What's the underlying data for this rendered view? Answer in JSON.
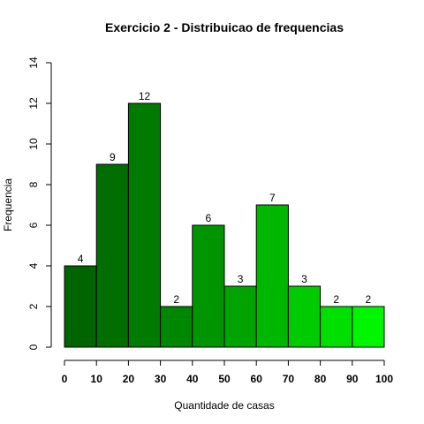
{
  "chart_data": {
    "type": "bar",
    "title": "Exercicio 2 - Distribuicao de frequencias",
    "xlabel": "Quantidade de casas",
    "ylabel": "Frequencia",
    "bins": [
      [
        0,
        10
      ],
      [
        10,
        20
      ],
      [
        20,
        30
      ],
      [
        30,
        40
      ],
      [
        40,
        50
      ],
      [
        50,
        60
      ],
      [
        60,
        70
      ],
      [
        70,
        80
      ],
      [
        80,
        90
      ],
      [
        90,
        100
      ]
    ],
    "values": [
      4,
      9,
      12,
      2,
      6,
      3,
      7,
      3,
      2,
      2
    ],
    "data_labels": [
      "4",
      "9",
      "12",
      "2",
      "6",
      "3",
      "7",
      "3",
      "2",
      "2"
    ],
    "x_ticks": [
      "0",
      "10",
      "20",
      "30",
      "40",
      "50",
      "60",
      "70",
      "80",
      "90",
      "100"
    ],
    "y_ticks": [
      "0",
      "2",
      "4",
      "6",
      "8",
      "10",
      "12",
      "14"
    ],
    "xlim": [
      0,
      100
    ],
    "ylim": [
      0,
      14
    ],
    "grid": false,
    "bar_colors": [
      "#006400",
      "#006E00",
      "#007A00",
      "#008700",
      "#009500",
      "#00A300",
      "#00B700",
      "#00CA00",
      "#00E000",
      "#00F500"
    ]
  }
}
